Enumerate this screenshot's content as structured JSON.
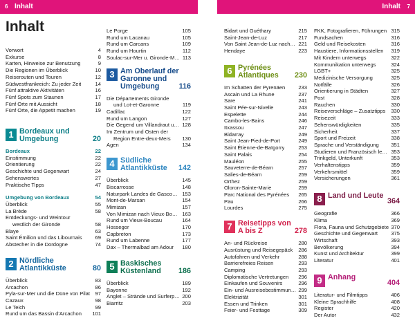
{
  "header": {
    "left": {
      "page": "6",
      "title": "Inhalt"
    },
    "right": {
      "page": "7",
      "title": "Inhalt"
    }
  },
  "page_title": "Inhalt",
  "colors": {
    "header_bar": "#e0147a",
    "sec1": "#0a8a93",
    "sec2": "#1578b2",
    "sec3": "#1c5aa0",
    "sec4": "#3d97cf",
    "sec5": "#0e7f58",
    "sec6": "#8fb324",
    "sec7": "#e0315b",
    "sec8": "#8a1f4d",
    "sec9": "#c32d86"
  },
  "col1": {
    "intro": [
      [
        "Vorwort",
        "4"
      ],
      [
        "Exkurse",
        "8"
      ],
      [
        "Karten, Hinweise zur Benutzung",
        "9"
      ],
      [
        "Die Regionen im Überblick",
        "10"
      ],
      [
        "Reiserouten und Touren",
        "12"
      ],
      [
        "Südwestfrankreich: Zu jeder Zeit",
        "14"
      ],
      [
        "Fünf attraktive Aktivitäten",
        "16"
      ],
      [
        "Fünf Spots zum Staunen",
        "17"
      ],
      [
        "Fünf Orte mit Aussicht",
        "18"
      ],
      [
        "Fünf Orte, die Appetit machen",
        "19"
      ]
    ],
    "sec1": {
      "num": "1",
      "title": "Bordeaux und Umgebung",
      "page": "20",
      "sub1": {
        "title": "Bordeaux",
        "page": "22"
      },
      "sub1_items": [
        [
          "Einstimmung",
          "22"
        ],
        [
          "Orientierung",
          "22"
        ],
        [
          "Geschichte und Gegenwart",
          "24"
        ],
        [
          "Sehenswertes",
          "27"
        ],
        [
          "Praktische Tipps",
          "47"
        ]
      ],
      "sub2": {
        "title": "Umgebung von Bordeaux",
        "page": "54"
      },
      "sub2_items": [
        {
          "t": "Überblick",
          "p": "55"
        },
        {
          "t": "La Brède",
          "p": "58"
        },
        {
          "t": "Entdeckungs- und Weintour",
          "p": ""
        },
        {
          "t": "westlich der Gironde",
          "p": "58",
          "ind": true
        },
        {
          "t": "Blaye",
          "p": "63"
        },
        {
          "t": "Saint Émilion und das Libournais",
          "p": "69"
        },
        {
          "t": "Abstecher in die Dordogne",
          "p": "74"
        }
      ]
    },
    "sec2": {
      "num": "2",
      "title": "Nördliche Atlantikküste",
      "page": "80",
      "items": [
        [
          "Überblick",
          "83"
        ],
        [
          "Arcachon",
          "86"
        ],
        [
          "Pyla-sur-Mer und die Düne von Pilat",
          "97"
        ],
        [
          "Cazaux",
          "98"
        ],
        [
          "Le Teich",
          "99"
        ],
        [
          "Rund um das Bassin d'Arcachon",
          "101"
        ]
      ]
    }
  },
  "col2": {
    "top": [
      [
        "Le Porge",
        "105"
      ],
      [
        "Rund um Lacanau",
        "105"
      ],
      [
        "Rund um Carcans",
        "109"
      ],
      [
        "Rund um Hourtin",
        "112"
      ],
      [
        "Soulac-sur-Mer u. Gironde-Mündung",
        "113"
      ]
    ],
    "sec3": {
      "num": "3",
      "title": "Am Oberlauf der Garonne und Umgebung",
      "page": "116",
      "items": [
        {
          "t": "Die Départements Gironde",
          "p": ""
        },
        {
          "t": "und Lot-et-Garonne",
          "p": "119",
          "ind": true
        },
        {
          "t": "Cadillac",
          "p": "122"
        },
        {
          "t": "Rund um Langon",
          "p": "127"
        },
        {
          "t": "Die Gegend um Villandraut und Bazas",
          "p": "128"
        },
        {
          "t": "Im Zentrum und Osten der",
          "p": ""
        },
        {
          "t": "Region Entre-deux-Mers",
          "p": "130",
          "ind": true
        },
        {
          "t": "Agen",
          "p": "134"
        }
      ]
    },
    "sec4": {
      "num": "4",
      "title": "Südliche Atlantikküste",
      "page": "142",
      "items": [
        [
          "Überblick",
          "145"
        ],
        [
          "Biscarrosse",
          "148"
        ],
        [
          "Naturpark Landes de Gascogne",
          "153"
        ],
        [
          "Mont-de-Marsan",
          "154"
        ],
        [
          "Mimizan",
          "157"
        ],
        [
          "Von Mimizan nach Vieux-Boucau",
          "163"
        ],
        [
          "Rund um Vieux-Boucau",
          "164"
        ],
        [
          "Hossegor",
          "170"
        ],
        [
          "Capbreton",
          "173"
        ],
        [
          "Rund um Labenne",
          "177"
        ],
        [
          "Dax – Thermalbad am Adour",
          "180"
        ]
      ]
    },
    "sec5": {
      "num": "5",
      "title": "Baskisches Küstenland",
      "page": "186",
      "items": [
        [
          "Überblick",
          "189"
        ],
        [
          "Bayonne",
          "192"
        ],
        [
          "Anglet – Strände und Surferparadies",
          "200"
        ],
        [
          "Biarritz",
          "203"
        ]
      ]
    }
  },
  "col3": {
    "top": [
      [
        "Bidart und Guéthary",
        "215"
      ],
      [
        "Saint-Jean-de-Luz",
        "217"
      ],
      [
        "Von Saint Jean-de-Luz nach Hendaye",
        "221"
      ],
      [
        "Hendaye",
        "223"
      ]
    ],
    "sec6": {
      "num": "6",
      "title": "Pyrénées Atlantiques",
      "page": "230",
      "items": [
        [
          "Im Schatten der Pyrenäen",
          "233"
        ],
        [
          "Ascain und La Rhune",
          "237"
        ],
        [
          "Sare",
          "241"
        ],
        [
          "Saint Pée-sur-Nivelle",
          "243"
        ],
        [
          "Espelette",
          "244"
        ],
        [
          "Cambo-les-Bains",
          "246"
        ],
        [
          "Itxassou",
          "247"
        ],
        [
          "Bidarray",
          "249"
        ],
        [
          "Saint Jean-Pied-de-Port",
          "249"
        ],
        [
          "Saint Étienne-de-Baïgorry",
          "253"
        ],
        [
          "Saint Palais",
          "254"
        ],
        [
          "Mauléon",
          "255"
        ],
        [
          "Sauveterre-de-Béarn",
          "257"
        ],
        [
          "Salies-de-Béarn",
          "259"
        ],
        [
          "Orthez",
          "259"
        ],
        [
          "Oloron-Sainte-Marie",
          "259"
        ],
        [
          "Parc National des Pyrénées",
          "265"
        ],
        [
          "Pau",
          "266"
        ],
        [
          "Lourdes",
          "275"
        ]
      ]
    },
    "sec7": {
      "num": "7",
      "title": "Reisetipps von A bis Z",
      "page": "278",
      "items": [
        [
          "An- und Rückreise",
          "280"
        ],
        [
          "Ausrüstung und Reisegepäck",
          "286"
        ],
        [
          "Autofahren und Verkehr",
          "288"
        ],
        [
          "Barrierefreies Reisen",
          "293"
        ],
        [
          "Camping",
          "293"
        ],
        [
          "Diplomatische Vertretungen",
          "296"
        ],
        [
          "Einkaufen und Souvenirs",
          "296"
        ],
        [
          "Ein- und Ausreisebestimmungen",
          "299"
        ],
        [
          "Elektrizität",
          "301"
        ],
        [
          "Essen und Trinken",
          "301"
        ],
        [
          "Feier- und Festtage",
          "309"
        ]
      ]
    }
  },
  "col4": {
    "top": [
      [
        "FKK, Fotografieren, Führungen",
        "315"
      ],
      [
        "Fundsachen",
        "316"
      ],
      [
        "Geld und Reisekosten",
        "316"
      ],
      [
        "Haustiere, Informationsstellen",
        "319"
      ],
      [
        "Mit Kindern unterwegs",
        "322"
      ],
      [
        "Kommunikation unterwegs",
        "324"
      ],
      [
        "LGBT+",
        "325"
      ],
      [
        "Medizinische Versorgung",
        "325"
      ],
      [
        "Notfälle",
        "326"
      ],
      [
        "Orientierung in Städten",
        "327"
      ],
      [
        "Post",
        "328"
      ],
      [
        "Rauchen",
        "330"
      ],
      [
        "Reiseverschläge – Zusatztipps",
        "330"
      ],
      [
        "Reisezeit",
        "333"
      ],
      [
        "Sehenswürdigkeiten",
        "335"
      ],
      [
        "Sicherheit",
        "337"
      ],
      [
        "Sport und Freizeit",
        "338"
      ],
      [
        "Sprache und Verständigung",
        "351"
      ],
      [
        "Studieren und Französisch lernen",
        "353"
      ],
      [
        "Trinkgeld, Unterkunft",
        "353"
      ],
      [
        "Verhaltenstipps",
        "359"
      ],
      [
        "Verkehrsmittel",
        "359"
      ],
      [
        "Versicherungen",
        "361"
      ]
    ],
    "sec8": {
      "num": "8",
      "title": "Land und Leute",
      "page": "364",
      "items": [
        [
          "Geografie",
          "366"
        ],
        [
          "Klima",
          "369"
        ],
        [
          "Flora, Fauna und Schutzgebiete",
          "370"
        ],
        [
          "Geschichte und Gegenwart",
          "375"
        ],
        [
          "Wirtschaft",
          "393"
        ],
        [
          "Bevölkerung",
          "394"
        ],
        [
          "Kunst und Architektur",
          "399"
        ],
        [
          "Literatur",
          "401"
        ]
      ]
    },
    "sec9": {
      "num": "9",
      "title": "Anhang",
      "page": "404",
      "items": [
        [
          "Literatur- und Filmtipps",
          "406"
        ],
        [
          "Kleine Sprachhilfe",
          "408"
        ],
        [
          "Register",
          "420"
        ],
        [
          "Der Autor",
          "432"
        ]
      ]
    }
  }
}
